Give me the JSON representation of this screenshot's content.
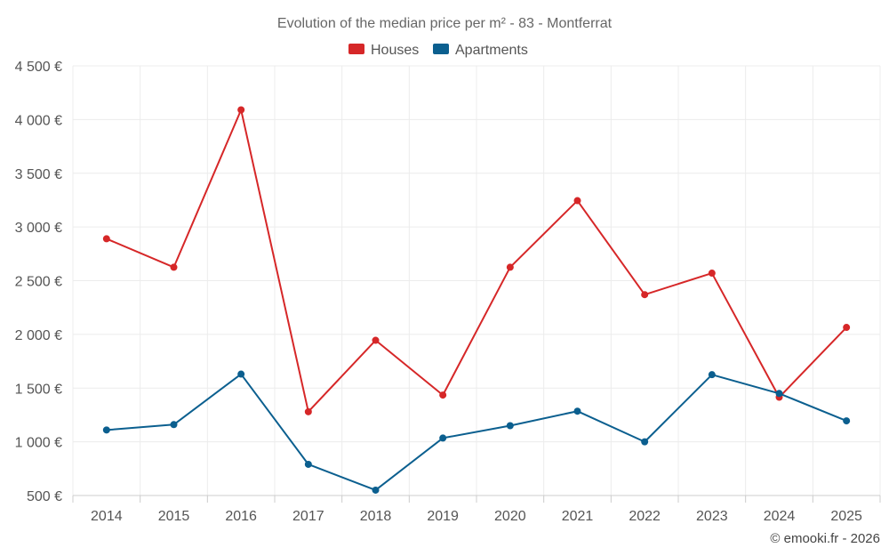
{
  "chart_data": {
    "type": "line",
    "title": "Evolution of the median price per m² - 83 - Montferrat",
    "categories": [
      "2014",
      "2015",
      "2016",
      "2017",
      "2018",
      "2019",
      "2020",
      "2021",
      "2022",
      "2023",
      "2024",
      "2025"
    ],
    "series": [
      {
        "name": "Houses",
        "color": "#d62728",
        "values": [
          2890,
          2625,
          4090,
          1280,
          1945,
          1435,
          2625,
          3245,
          2370,
          2570,
          1415,
          2065
        ]
      },
      {
        "name": "Apartments",
        "color": "#0b5f8f",
        "values": [
          1110,
          1160,
          1630,
          790,
          550,
          1035,
          1150,
          1285,
          1000,
          1625,
          1450,
          1195
        ]
      }
    ],
    "ylim": [
      500,
      4500
    ],
    "yticks": [
      500,
      1000,
      1500,
      2000,
      2500,
      3000,
      3500,
      4000,
      4500
    ],
    "ytick_labels": [
      "500 €",
      "1 000 €",
      "1 500 €",
      "2 000 €",
      "2 500 €",
      "3 000 €",
      "3 500 €",
      "4 000 €",
      "4 500 €"
    ],
    "grid": true,
    "legend_position": "top-center"
  },
  "credit": "© emooki.fr - 2026"
}
